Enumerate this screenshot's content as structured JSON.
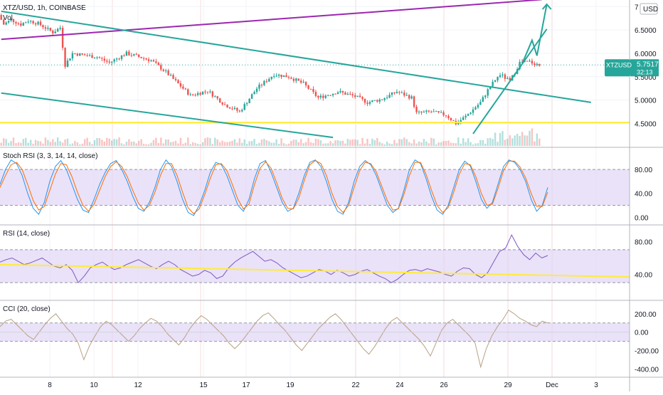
{
  "header": {
    "symbol_title": "XTZ/USD, 1h, COINBASE",
    "volume_label": "Vol",
    "currency": "USD"
  },
  "price_badge": {
    "symbol": "XTZUSD",
    "price": "5.7517",
    "countdown": "32:13",
    "color": "#26a69a"
  },
  "colors": {
    "up": "#26a69a",
    "down": "#ef5350",
    "purple_line": "#9c27b0",
    "teal_line": "#26a69a",
    "yellow_line": "#ffeb3b",
    "stoch_k": "#2196f3",
    "stoch_d": "#ff6d00",
    "rsi_line": "#7e57c2",
    "cci_line": "#b7a184",
    "band_fill": "#e1d5f5",
    "session_line": "#f8c8c8"
  },
  "x_axis": {
    "ticks": [
      "8",
      "10",
      "12",
      "15",
      "17",
      "19",
      "22",
      "24",
      "26",
      "29",
      "Dec",
      "3"
    ]
  },
  "chart_data": [
    {
      "type": "candlestick",
      "title": "XTZ/USD, 1h, COINBASE",
      "y_ticks": [
        "7",
        "6.5000",
        "6.0000",
        "5.5000",
        "5.0000",
        "4.5000"
      ],
      "ylim": [
        4.05,
        7.05
      ],
      "last_price": 5.7517,
      "horizontal_level": 4.52,
      "anchors": [
        [
          0,
          6.82
        ],
        [
          2,
          6.62
        ],
        [
          5,
          6.72
        ],
        [
          9,
          6.62
        ],
        [
          12,
          6.7
        ],
        [
          16,
          6.64
        ],
        [
          22,
          6.45
        ],
        [
          25,
          6.55
        ],
        [
          27,
          5.75
        ],
        [
          30,
          6.0
        ],
        [
          40,
          5.92
        ],
        [
          45,
          5.8
        ],
        [
          52,
          6.0
        ],
        [
          62,
          5.85
        ],
        [
          68,
          5.6
        ],
        [
          78,
          5.1
        ],
        [
          85,
          5.2
        ],
        [
          92,
          4.9
        ],
        [
          98,
          4.75
        ],
        [
          105,
          5.25
        ],
        [
          112,
          5.55
        ],
        [
          118,
          5.5
        ],
        [
          124,
          5.35
        ],
        [
          130,
          5.05
        ],
        [
          138,
          5.18
        ],
        [
          145,
          5.08
        ],
        [
          150,
          4.95
        ],
        [
          156,
          5.02
        ],
        [
          162,
          5.18
        ],
        [
          168,
          5.05
        ],
        [
          170,
          4.72
        ],
        [
          176,
          4.75
        ],
        [
          182,
          4.68
        ],
        [
          186,
          4.5
        ],
        [
          190,
          4.65
        ],
        [
          196,
          4.95
        ],
        [
          200,
          5.3
        ],
        [
          204,
          5.55
        ],
        [
          208,
          5.4
        ],
        [
          212,
          5.8
        ],
        [
          216,
          5.82
        ],
        [
          220,
          5.75
        ]
      ],
      "lines": [
        {
          "name": "",
          "from": [
            0,
            6.3
          ],
          "to": [
            220,
            7.15
          ]
        },
        {
          "name": "",
          "from": [
            0,
            6.9
          ],
          "to": [
            240,
            4.95
          ]
        },
        {
          "name": "",
          "from": [
            0,
            5.15
          ],
          "to": [
            135,
            4.2
          ]
        },
        {
          "name": "",
          "from": [
            192,
            4.28
          ],
          "to": [
            222,
            6.52
          ]
        }
      ],
      "projection": [
        [
          212,
          5.78
        ],
        [
          216,
          6.28
        ],
        [
          218,
          5.95
        ],
        [
          222,
          7.05
        ]
      ],
      "n_bars": 220
    },
    {
      "type": "line",
      "title": "Stoch RSI (3, 3, 14, 14, close)",
      "y_ticks": [
        "80.00",
        "40.00",
        "0.00"
      ],
      "ylim": [
        -8,
        110
      ],
      "band": [
        20,
        80
      ],
      "series": [
        {
          "name": "%K",
          "values": [
            55,
            80,
            96,
            90,
            70,
            40,
            15,
            5,
            25,
            60,
            85,
            95,
            80,
            55,
            30,
            12,
            8,
            30,
            55,
            75,
            90,
            95,
            80,
            60,
            35,
            15,
            10,
            25,
            50,
            80,
            96,
            85,
            60,
            30,
            8,
            3,
            20,
            45,
            75,
            92,
            88,
            70,
            45,
            20,
            10,
            30,
            65,
            90,
            95,
            75,
            50,
            25,
            10,
            15,
            40,
            70,
            92,
            96,
            85,
            60,
            30,
            10,
            5,
            25,
            60,
            85,
            95,
            88,
            70,
            45,
            20,
            8,
            15,
            45,
            80,
            96,
            90,
            65,
            35,
            12,
            5,
            20,
            50,
            80,
            94,
            86,
            60,
            30,
            15,
            25,
            55,
            85,
            96,
            92,
            80,
            60,
            30,
            10,
            20,
            50
          ]
        },
        {
          "name": "%D",
          "values": [
            50,
            70,
            88,
            92,
            80,
            55,
            28,
            12,
            18,
            45,
            72,
            90,
            88,
            68,
            42,
            20,
            10,
            22,
            45,
            68,
            85,
            93,
            85,
            68,
            45,
            24,
            12,
            20,
            42,
            70,
            90,
            90,
            70,
            42,
            16,
            6,
            14,
            38,
            65,
            88,
            90,
            78,
            55,
            30,
            14,
            22,
            55,
            82,
            93,
            82,
            58,
            32,
            15,
            14,
            32,
            62,
            88,
            95,
            90,
            70,
            40,
            18,
            8,
            20,
            50,
            78,
            92,
            90,
            76,
            52,
            28,
            12,
            14,
            38,
            70,
            92,
            92,
            72,
            45,
            20,
            8,
            16,
            42,
            72,
            90,
            88,
            68,
            40,
            20,
            22,
            48,
            78,
            94,
            94,
            84,
            66,
            40,
            18,
            18,
            42
          ]
        }
      ]
    },
    {
      "type": "line",
      "title": "RSI (14, close)",
      "y_ticks": [
        "80.00",
        "40.00"
      ],
      "ylim": [
        12,
        95
      ],
      "band": [
        30,
        70
      ],
      "series": [
        {
          "name": "RSI",
          "values": [
            55,
            58,
            60,
            56,
            52,
            54,
            57,
            60,
            55,
            50,
            48,
            52,
            45,
            30,
            38,
            48,
            52,
            55,
            50,
            46,
            48,
            52,
            55,
            58,
            54,
            50,
            47,
            52,
            56,
            52,
            46,
            42,
            38,
            40,
            45,
            42,
            35,
            38,
            48,
            55,
            60,
            64,
            68,
            62,
            56,
            58,
            54,
            48,
            44,
            40,
            36,
            38,
            42,
            46,
            44,
            40,
            45,
            42,
            38,
            40,
            44,
            46,
            42,
            38,
            35,
            30,
            34,
            40,
            45,
            46,
            44,
            47,
            45,
            43,
            40,
            38,
            44,
            48,
            47,
            40,
            36,
            42,
            55,
            68,
            72,
            88,
            74,
            64,
            58,
            66,
            60,
            63
          ]
        },
        {
          "name": "",
          "values": [
            52,
            37
          ]
        }
      ]
    },
    {
      "type": "line",
      "title": "CCI (20, close)",
      "y_ticks": [
        "200.00",
        "0.00",
        "-200.00",
        "-400.00"
      ],
      "ylim": [
        -460,
        300
      ],
      "band": [
        -100,
        100
      ],
      "series": [
        {
          "name": "CCI",
          "values": [
            60,
            120,
            140,
            80,
            20,
            -40,
            -80,
            0,
            80,
            150,
            200,
            120,
            40,
            -20,
            -120,
            -300,
            -150,
            -40,
            60,
            120,
            80,
            20,
            -40,
            -100,
            -40,
            40,
            100,
            150,
            120,
            60,
            -20,
            -80,
            -140,
            -60,
            40,
            120,
            180,
            140,
            80,
            20,
            -40,
            -120,
            -180,
            -120,
            -40,
            40,
            120,
            180,
            210,
            150,
            80,
            20,
            -60,
            -140,
            -200,
            -120,
            -40,
            40,
            100,
            160,
            200,
            140,
            60,
            -20,
            -100,
            -180,
            -240,
            -160,
            -60,
            40,
            120,
            160,
            100,
            40,
            -20,
            -80,
            -160,
            -260,
            -120,
            20,
            100,
            140,
            80,
            20,
            -40,
            -120,
            -380,
            -180,
            -40,
            60,
            140,
            240,
            200,
            150,
            120,
            80,
            60,
            120,
            100
          ]
        }
      ]
    }
  ]
}
